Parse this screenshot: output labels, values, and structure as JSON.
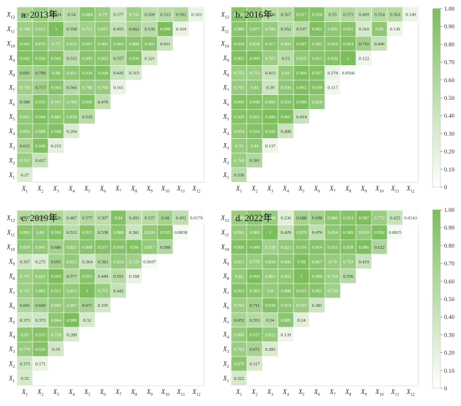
{
  "chart_data": {
    "type": "heatmap",
    "x_labels": [
      "X1",
      "X2",
      "X3",
      "X4",
      "X5",
      "X6",
      "X7",
      "X8",
      "X9",
      "X10",
      "X11",
      "X12"
    ],
    "y_labels": [
      "X1",
      "X2",
      "X3",
      "X4",
      "X5",
      "X6",
      "X7",
      "X8",
      "X9",
      "X10",
      "X11",
      "X12"
    ],
    "colorbar": {
      "min": 0,
      "max": 1,
      "ticks": [
        "0",
        "0.10",
        "0.20",
        "0.30",
        "0.40",
        "0.50",
        "0.60",
        "0.70",
        "0.80",
        "0.90",
        "1.00"
      ],
      "color_low": "#ffffff",
      "color_high": "#7cbd5c"
    },
    "panels": [
      {
        "title": "a. 2013年",
        "rows": [
          [
            "0.27"
          ],
          [
            "0.767",
            "0.437"
          ],
          [
            "0.621",
            "0.949",
            "0.215"
          ],
          [
            "0.836",
            "0.889",
            "0.948",
            "0.294"
          ],
          [
            "0.822",
            "0.966",
            "0.885",
            "0.878",
            "0.535"
          ],
          [
            "0.589",
            "0.933",
            "0.767",
            "0.784",
            "0.945",
            "0.479"
          ],
          [
            "0.726",
            "0.717",
            "0.904",
            "0.566",
            "0.788",
            "0.784",
            "0.161"
          ],
          [
            "0.691",
            "0.706",
            "0.88",
            "0.852",
            "0.936",
            "0.938",
            "0.426",
            "0.315"
          ],
          [
            "0.942",
            "0.936",
            "0.945",
            "0.515",
            "0.895",
            "0.895",
            "0.557",
            "0.936",
            "0.321"
          ],
          [
            "0.943",
            "0.876",
            "0.75",
            "0.832",
            "0.907",
            "0.901",
            "0.903",
            "0.888",
            "0.903",
            "0.411"
          ],
          [
            "0.746",
            "0.813",
            "1",
            "0.558",
            "0.731",
            "0.817",
            "0.455",
            "0.662",
            "0.536",
            "0.998",
            "0.164"
          ],
          [
            "0.63",
            "0.764",
            "0.604",
            "0.54",
            "0.884",
            "0.79",
            "0.377",
            "0.741",
            "0.509",
            "0.533",
            "0.592",
            "0.163"
          ]
        ]
      },
      {
        "title": "b. 2016年",
        "rows": [
          [
            "0.536"
          ],
          [
            "0.769",
            "0.591"
          ],
          [
            "0.79",
            "0.84",
            "0.137"
          ],
          [
            "0.854",
            "0.944",
            "0.945",
            "0.408"
          ],
          [
            "0.929",
            "0.922",
            "0.998",
            "0.967",
            "0.414"
          ],
          [
            "0.943",
            "0.946",
            "0.896",
            "0.935",
            "0.999",
            "0.828"
          ],
          [
            "0.795",
            "0.84",
            "0.39",
            "0.836",
            "0.962",
            "0.938",
            "0.117"
          ],
          [
            "0.752",
            "0.755",
            "0.413",
            "0.81",
            "0.966",
            "0.937",
            "0.174",
            "0.0566"
          ],
          [
            "0.965",
            "0.999",
            "0.767",
            "0.51",
            "0.835",
            "0.913",
            "0.928",
            "1",
            "0.122"
          ],
          [
            "0.954",
            "0.838",
            "0.917",
            "0.804",
            "0.987",
            "0.901",
            "0.918",
            "0.954",
            "0.716",
            "0.446"
          ],
          [
            "0.899",
            "0.877",
            "0.789",
            "0.552",
            "0.537",
            "0.962",
            "0.856",
            "0.915",
            "0.316",
            "0.85",
            "0.136"
          ],
          [
            "0.928",
            "0.813",
            "0.546",
            "0.567",
            "0.917",
            "0.928",
            "0.55",
            "0.573",
            "0.469",
            "0.554",
            "0.563",
            "0.149"
          ]
        ]
      },
      {
        "title": "c. 2019年",
        "rows": [
          [
            "0.32"
          ],
          [
            "0.373",
            "0.171"
          ],
          [
            "0.779",
            "0.935",
            "0.35"
          ],
          [
            "0.85",
            "0.935",
            "0.758",
            "0.289"
          ],
          [
            "0.373",
            "0.373",
            "0.864",
            "0.999",
            "0.32"
          ],
          [
            "0.601",
            "0.669",
            "0.805",
            "0.807",
            "0.671",
            "0.335"
          ],
          [
            "0.747",
            "0.883",
            "0.912",
            "0.815",
            "1",
            "0.775",
            "0.442"
          ],
          [
            "0.747",
            "0.821",
            "0.993",
            "0.577",
            "0.915",
            "0.449",
            "0.551",
            "0.168"
          ],
          [
            "0.367",
            "0.275",
            "0.691",
            "0.815",
            "0.364",
            "0.583",
            "0.824",
            "0.723",
            "0.0697"
          ],
          [
            "0.839",
            "0.841",
            "0.686",
            "0.821",
            "0.898",
            "0.937",
            "0.919",
            "0.94",
            "0.817",
            "0.588"
          ],
          [
            "0.893",
            "0.86",
            "0.936",
            "0.512",
            "0.915",
            "0.538",
            "0.888",
            "0.381",
            "0.826",
            "0.935",
            "0.0838"
          ],
          [
            "0.597",
            "0.576",
            "0.626",
            "0.487",
            "0.577",
            "0.507",
            "0.94",
            "0.493",
            "0.537",
            "0.68",
            "0.492",
            "0.0176"
          ]
        ]
      },
      {
        "title": "d. 2022年",
        "rows": [
          [
            "0.322"
          ],
          [
            "0.876",
            "0.317"
          ],
          [
            "0.755",
            "0.671",
            "0.283"
          ],
          [
            "0.806",
            "0.937",
            "0.822",
            "0.139"
          ],
          [
            "0.653",
            "0.553",
            "0.54",
            "0.885",
            "0.24"
          ],
          [
            "0.762",
            "0.711",
            "0.939",
            "0.874",
            "0.767",
            "0.381"
          ],
          [
            "0.933",
            "0.903",
            "0.8",
            "0.888",
            "0.919",
            "0.901",
            "0.726"
          ],
          [
            "0.82",
            "0.995",
            "0.803",
            "0.831",
            "1",
            "0.908",
            "0.754",
            "0.556"
          ],
          [
            "0.821",
            "0.778",
            "0.859",
            "0.846",
            "0.98",
            "0.867",
            "0.79",
            "0.793",
            "0.419"
          ],
          [
            "0.956",
            "0.989",
            "0.728",
            "0.823",
            "0.916",
            "0.914",
            "0.916",
            "0.928",
            "0.986",
            "0.622"
          ],
          [
            "0.816",
            "0.885",
            "1",
            "0.429",
            "0.879",
            "0.476",
            "0.854",
            "0.989",
            "0.819",
            "0.992",
            "0.0815"
          ],
          [
            "0.769",
            "0.879",
            "0.788",
            "0.236",
            "0.688",
            "0.698",
            "0.886",
            "0.914",
            "0.987",
            "0.772",
            "0.425",
            "0.0143"
          ]
        ]
      }
    ]
  }
}
